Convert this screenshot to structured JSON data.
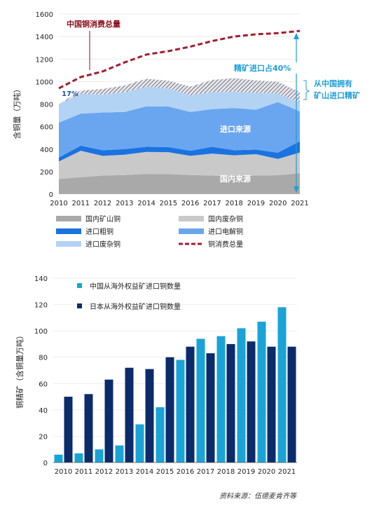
{
  "chart_data": [
    {
      "type": "area",
      "x": [
        2010,
        2011,
        2012,
        2013,
        2014,
        2015,
        2016,
        2017,
        2018,
        2019,
        2020,
        2021
      ],
      "xlim": [
        2010,
        2021
      ],
      "ylim": [
        0,
        1600
      ],
      "yticks": [
        0,
        200,
        400,
        600,
        800,
        1000,
        1200,
        1400,
        1600
      ],
      "ylabel": "含铜量（万吨）",
      "stacked": true,
      "series": [
        {
          "name": "国内矿山铜",
          "color": "#a9a9a9",
          "values": [
            135,
            150,
            165,
            170,
            180,
            178,
            170,
            165,
            160,
            165,
            168,
            185
          ]
        },
        {
          "name": "国内废杂铜",
          "color": "#c9c9c9",
          "values": [
            155,
            235,
            175,
            180,
            195,
            195,
            170,
            195,
            185,
            190,
            145,
            185
          ]
        },
        {
          "name": "进口粗铜",
          "color": "#1a73e0",
          "values": [
            35,
            45,
            50,
            50,
            45,
            45,
            45,
            60,
            45,
            40,
            55,
            100
          ]
        },
        {
          "name": "进口电解铜",
          "color": "#6aa6ef",
          "values": [
            310,
            285,
            335,
            330,
            360,
            360,
            345,
            335,
            375,
            355,
            450,
            265
          ]
        },
        {
          "name": "进口废杂铜",
          "color": "#b3d3f5",
          "values": [
            165,
            175,
            160,
            175,
            175,
            160,
            150,
            150,
            145,
            150,
            75,
            75
          ]
        }
      ],
      "hatch_band": {
        "name": "从中国拥有矿山进口精矿",
        "values": [
          0,
          30,
          50,
          60,
          70,
          70,
          75,
          110,
          120,
          110,
          105,
          95
        ]
      },
      "line": {
        "name": "铜消费总量",
        "color": "#a51c30",
        "values": [
          940,
          1040,
          1090,
          1170,
          1240,
          1270,
          1310,
          1360,
          1400,
          1420,
          1430,
          1450
        ]
      },
      "annotations": {
        "top_red": "中国铜消费总量",
        "pct17": "17%",
        "pct40": "精矿进口占40%",
        "owned_mine": [
          "从中国拥有",
          "矿山进口精矿"
        ],
        "import_src": "进口来源",
        "domestic_src": "国内来源"
      },
      "legend": [
        "国内矿山铜",
        "国内废杂铜",
        "进口粗铜",
        "进口电解铜",
        "进口废杂铜",
        "铜消费总量"
      ]
    },
    {
      "type": "bar",
      "categories": [
        "2010",
        "2011",
        "2012",
        "2013",
        "2014",
        "2015",
        "2016",
        "2017",
        "2018",
        "2019",
        "2020",
        "2021"
      ],
      "ylim": [
        0,
        140
      ],
      "yticks": [
        0,
        20,
        40,
        60,
        80,
        100,
        120,
        140
      ],
      "ylabel": "铜精矿（含铜量万吨）",
      "legend_position": "top-left",
      "series": [
        {
          "name": "中国从海外权益矿进口铜数量",
          "color": "#1aa3d6",
          "values": [
            6,
            7,
            10,
            13,
            29,
            42,
            78,
            94,
            96,
            102,
            107,
            118
          ]
        },
        {
          "name": "日本从海外权益矿进口铜数量",
          "color": "#0c2b6b",
          "values": [
            50,
            52,
            63,
            72,
            71,
            80,
            88,
            83,
            90,
            92,
            88,
            88
          ]
        }
      ]
    }
  ],
  "source": "资料来源：伍德麦肯齐等"
}
